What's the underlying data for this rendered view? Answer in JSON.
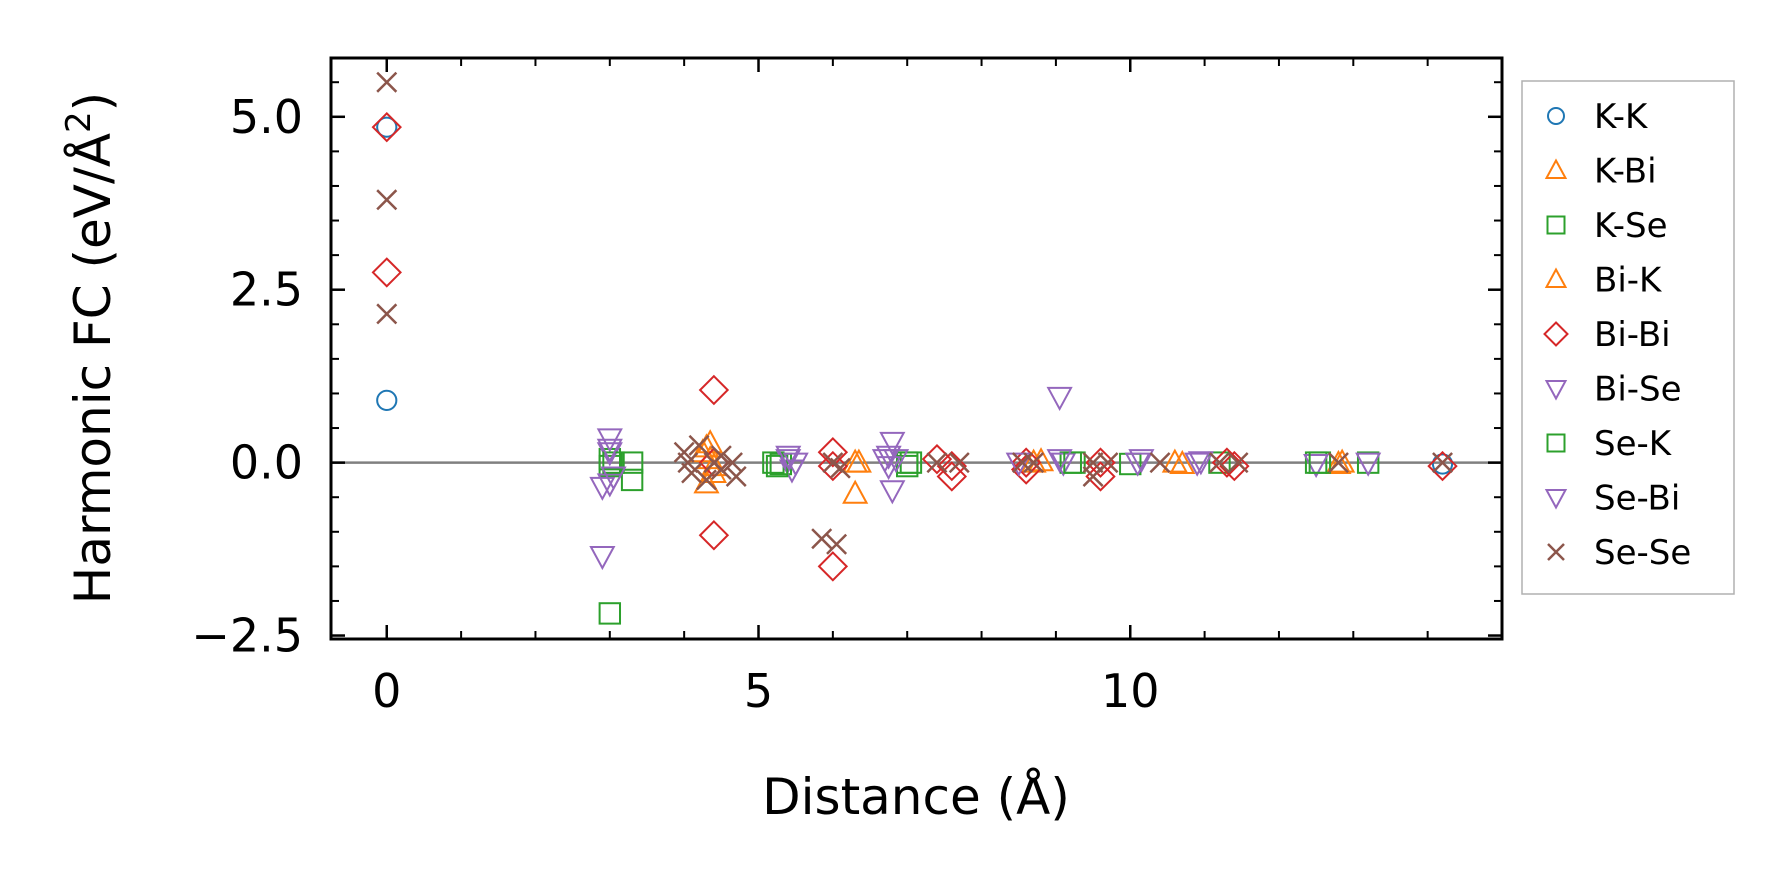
{
  "chart_data": {
    "type": "scatter",
    "title": "",
    "xlabel": "Distance (Å)",
    "ylabel_main": "Harmonic FC (eV/Å",
    "ylabel_sup": "2",
    "ylabel_close": ")",
    "xlim": [
      -0.75,
      15.0
    ],
    "ylim": [
      -2.55,
      5.85
    ],
    "xticks": [
      0,
      5,
      10
    ],
    "xtick_labels": [
      "0",
      "5",
      "10"
    ],
    "yticks": [
      -2.5,
      0.0,
      2.5,
      5.0
    ],
    "ytick_labels": [
      "−2.5",
      "0.0",
      "2.5",
      "5.0"
    ],
    "zero_line": 0,
    "legend_position": "right",
    "series": [
      {
        "name": "K-K",
        "marker": "circle",
        "color": "#1f77b4",
        "points": [
          [
            0,
            4.85
          ],
          [
            0,
            0.9
          ],
          [
            14.2,
            -0.02
          ]
        ]
      },
      {
        "name": "K-Bi",
        "marker": "triangle-up",
        "color": "#ff7f0e",
        "points": [
          [
            4.3,
            0.22
          ],
          [
            4.35,
            0.05
          ],
          [
            4.4,
            -0.05
          ],
          [
            4.3,
            -0.3
          ],
          [
            4.25,
            0.15
          ],
          [
            6.3,
            0.0
          ],
          [
            6.3,
            -0.45
          ],
          [
            8.7,
            0.0
          ],
          [
            10.6,
            0.0
          ],
          [
            12.8,
            -0.02
          ]
        ]
      },
      {
        "name": "K-Se",
        "marker": "square",
        "color": "#2ca02c",
        "points": [
          [
            3.0,
            -2.18
          ],
          [
            3.0,
            0.05
          ],
          [
            3.0,
            -0.05
          ],
          [
            3.3,
            -0.25
          ],
          [
            3.3,
            0.0
          ],
          [
            5.2,
            0.0
          ],
          [
            5.3,
            -0.02
          ],
          [
            7.0,
            0.0
          ],
          [
            7.0,
            -0.05
          ],
          [
            9.2,
            0.0
          ],
          [
            10.0,
            -0.02
          ],
          [
            11.2,
            0.0
          ],
          [
            12.5,
            0.0
          ],
          [
            13.2,
            0.0
          ]
        ]
      },
      {
        "name": "Bi-K",
        "marker": "triangle-up",
        "color": "#ff7f0e",
        "points": [
          [
            4.35,
            0.28
          ],
          [
            4.4,
            -0.15
          ],
          [
            6.35,
            0.0
          ],
          [
            8.8,
            0.02
          ],
          [
            10.7,
            -0.02
          ],
          [
            12.85,
            0.0
          ]
        ]
      },
      {
        "name": "Bi-Bi",
        "marker": "diamond",
        "color": "#d62728",
        "points": [
          [
            0,
            4.85
          ],
          [
            0,
            2.75
          ],
          [
            4.4,
            1.05
          ],
          [
            4.4,
            -1.05
          ],
          [
            4.4,
            0.0
          ],
          [
            6.0,
            0.15
          ],
          [
            6.0,
            -0.05
          ],
          [
            6.0,
            -1.5
          ],
          [
            7.4,
            0.05
          ],
          [
            7.6,
            -0.05
          ],
          [
            7.6,
            -0.2
          ],
          [
            8.6,
            0.0
          ],
          [
            8.6,
            -0.1
          ],
          [
            9.6,
            0.0
          ],
          [
            9.6,
            -0.2
          ],
          [
            11.3,
            0.0
          ],
          [
            11.4,
            -0.05
          ],
          [
            14.2,
            -0.05
          ]
        ]
      },
      {
        "name": "Bi-Se",
        "marker": "triangle-down",
        "color": "#9467bd",
        "points": [
          [
            3.0,
            0.35
          ],
          [
            3.0,
            0.15
          ],
          [
            2.9,
            -0.35
          ],
          [
            3.0,
            -0.3
          ],
          [
            2.9,
            -1.35
          ],
          [
            5.4,
            0.05
          ],
          [
            5.45,
            -0.1
          ],
          [
            6.7,
            0.05
          ],
          [
            6.8,
            0.3
          ],
          [
            6.8,
            -0.4
          ],
          [
            8.5,
            0.0
          ],
          [
            9.05,
            0.95
          ],
          [
            9.1,
            0.0
          ],
          [
            10.1,
            0.0
          ],
          [
            10.9,
            0.0
          ],
          [
            12.5,
            -0.02
          ],
          [
            13.2,
            0.0
          ]
        ]
      },
      {
        "name": "Se-K",
        "marker": "square",
        "color": "#2ca02c",
        "points": [
          [
            3.05,
            0.0
          ],
          [
            5.25,
            -0.05
          ],
          [
            7.05,
            0.0
          ],
          [
            9.25,
            0.0
          ],
          [
            12.55,
            0.0
          ]
        ]
      },
      {
        "name": "Se-Bi",
        "marker": "triangle-down",
        "color": "#9467bd",
        "points": [
          [
            3.0,
            0.2
          ],
          [
            3.05,
            -0.2
          ],
          [
            5.4,
            0.1
          ],
          [
            5.5,
            0.0
          ],
          [
            6.75,
            0.1
          ],
          [
            6.75,
            -0.05
          ],
          [
            6.85,
            0.05
          ],
          [
            9.05,
            0.05
          ],
          [
            10.15,
            0.05
          ],
          [
            10.95,
            0.02
          ]
        ]
      },
      {
        "name": "Se-Se",
        "marker": "x",
        "color": "#8c564b",
        "points": [
          [
            0,
            5.5
          ],
          [
            0,
            3.8
          ],
          [
            0,
            2.15
          ],
          [
            4.0,
            0.15
          ],
          [
            4.1,
            -0.15
          ],
          [
            4.2,
            0.25
          ],
          [
            4.3,
            -0.25
          ],
          [
            4.4,
            0.0
          ],
          [
            4.5,
            0.1
          ],
          [
            4.5,
            -0.1
          ],
          [
            4.65,
            0.0
          ],
          [
            4.7,
            -0.2
          ],
          [
            4.05,
            0.0
          ],
          [
            5.85,
            -1.1
          ],
          [
            6.05,
            -1.18
          ],
          [
            6.0,
            0.0
          ],
          [
            6.1,
            -0.08
          ],
          [
            7.4,
            0.0
          ],
          [
            7.7,
            0.0
          ],
          [
            8.55,
            0.0
          ],
          [
            8.7,
            0.0
          ],
          [
            9.5,
            0.0
          ],
          [
            9.5,
            -0.2
          ],
          [
            9.7,
            0.0
          ],
          [
            10.4,
            0.0
          ],
          [
            11.2,
            0.0
          ],
          [
            11.45,
            0.0
          ],
          [
            12.8,
            0.0
          ],
          [
            14.2,
            0.0
          ]
        ]
      }
    ]
  }
}
